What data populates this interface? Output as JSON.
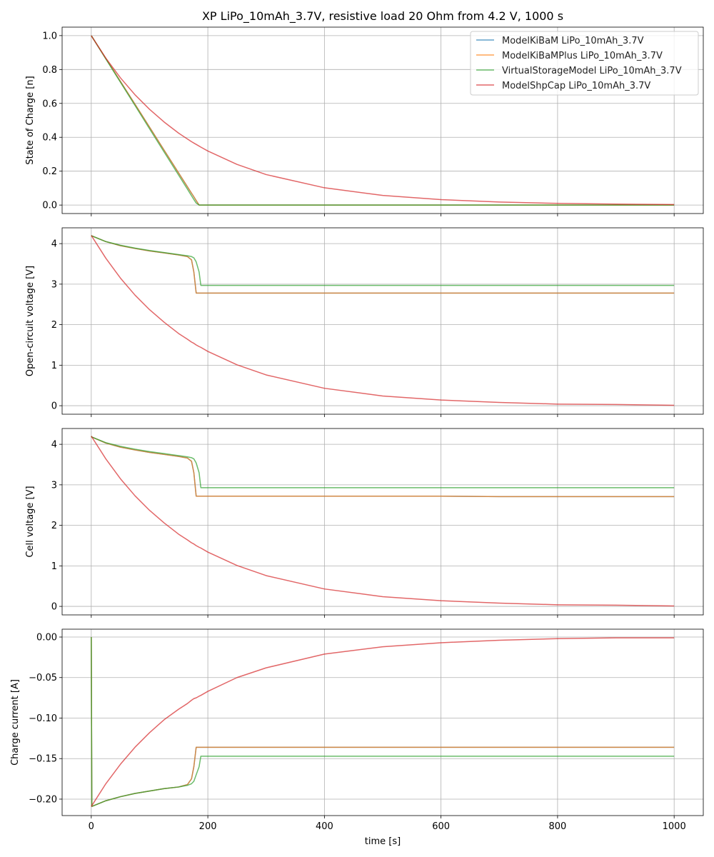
{
  "chart_data": {
    "type": "line",
    "title": "XP LiPo_10mAh_3.7V, resistive load 20 Ohm from 4.2 V, 1000 s",
    "xlabel": "time [s]",
    "xlim": [
      -50,
      1050
    ],
    "xticks": [
      0,
      200,
      400,
      600,
      800,
      1000
    ],
    "grid": true,
    "legend_placement": "top-right (first panel)",
    "x": [
      0,
      1,
      25,
      50,
      75,
      100,
      125,
      150,
      165,
      172,
      176,
      180,
      185,
      188,
      200,
      250,
      300,
      400,
      500,
      600,
      700,
      800,
      900,
      1000
    ],
    "series_meta": [
      {
        "name": "ModelKiBaM LiPo_10mAh_3.7V",
        "color": "#1f77b4"
      },
      {
        "name": "ModelKiBaMPlus LiPo_10mAh_3.7V",
        "color": "#ff7f0e"
      },
      {
        "name": "VirtualStorageModel LiPo_10mAh_3.7V",
        "color": "#2ca02c"
      },
      {
        "name": "ModelShpCap LiPo_10mAh_3.7V",
        "color": "#d62728"
      }
    ],
    "panels": [
      {
        "ylabel": "State of Charge [n]",
        "ylim": [
          -0.05,
          1.05
        ],
        "yticks": [
          0,
          0.2,
          0.4,
          0.6,
          0.8,
          1.0
        ],
        "ytick_labels": [
          "0.0",
          "0.2",
          "0.4",
          "0.6",
          "0.8",
          "1.0"
        ],
        "series": [
          [
            1,
            0.995,
            0.865,
            0.73,
            0.595,
            0.46,
            0.324,
            0.189,
            0.108,
            0.07,
            0.049,
            0.027,
            0,
            0,
            0,
            0,
            0,
            0,
            0,
            0,
            0,
            0,
            0,
            0
          ],
          [
            1,
            0.995,
            0.865,
            0.73,
            0.595,
            0.46,
            0.324,
            0.189,
            0.108,
            0.07,
            0.049,
            0.027,
            0,
            0,
            0,
            0,
            0,
            0,
            0,
            0,
            0,
            0,
            0,
            0
          ],
          [
            1,
            0.995,
            0.862,
            0.725,
            0.588,
            0.45,
            0.313,
            0.176,
            0.094,
            0.055,
            0.033,
            0.012,
            0,
            0,
            0,
            0,
            0,
            0,
            0,
            0,
            0,
            0,
            0,
            0
          ],
          [
            1,
            0.994,
            0.867,
            0.751,
            0.651,
            0.565,
            0.49,
            0.424,
            0.39,
            0.374,
            0.366,
            0.358,
            0.348,
            0.342,
            0.319,
            0.24,
            0.18,
            0.102,
            0.057,
            0.032,
            0.018,
            0.01,
            0.006,
            0.003
          ]
        ]
      },
      {
        "ylabel": "Open-circuit voltage [V]",
        "ylim": [
          -0.21,
          4.39
        ],
        "yticks": [
          0,
          1,
          2,
          3,
          4
        ],
        "ytick_labels": [
          "0",
          "1",
          "2",
          "3",
          "4"
        ],
        "series": [
          [
            4.2,
            4.19,
            4.05,
            3.95,
            3.88,
            3.82,
            3.77,
            3.72,
            3.68,
            3.6,
            3.3,
            2.78,
            2.78,
            2.78,
            2.78,
            2.78,
            2.78,
            2.78,
            2.78,
            2.78,
            2.78,
            2.78,
            2.78,
            2.78
          ],
          [
            4.2,
            4.19,
            4.05,
            3.95,
            3.88,
            3.82,
            3.77,
            3.72,
            3.68,
            3.6,
            3.3,
            2.78,
            2.78,
            2.78,
            2.78,
            2.78,
            2.78,
            2.78,
            2.78,
            2.78,
            2.78,
            2.78,
            2.78,
            2.78
          ],
          [
            4.2,
            4.19,
            4.05,
            3.96,
            3.89,
            3.83,
            3.78,
            3.73,
            3.7,
            3.68,
            3.65,
            3.55,
            3.3,
            2.97,
            2.97,
            2.97,
            2.97,
            2.97,
            2.97,
            2.97,
            2.97,
            2.97,
            2.97,
            2.97
          ],
          [
            4.2,
            4.18,
            3.64,
            3.15,
            2.73,
            2.37,
            2.06,
            1.78,
            1.64,
            1.57,
            1.54,
            1.5,
            1.46,
            1.44,
            1.34,
            1.01,
            0.76,
            0.43,
            0.24,
            0.14,
            0.08,
            0.04,
            0.03,
            0.01
          ]
        ]
      },
      {
        "ylabel": "Cell voltage [V]",
        "ylim": [
          -0.21,
          4.39
        ],
        "yticks": [
          0,
          1,
          2,
          3,
          4
        ],
        "ytick_labels": [
          "0",
          "1",
          "2",
          "3",
          "4"
        ],
        "series": [
          [
            4.2,
            4.18,
            4.03,
            3.93,
            3.86,
            3.8,
            3.75,
            3.7,
            3.66,
            3.58,
            3.3,
            2.72,
            2.72,
            2.72,
            2.72,
            2.72,
            2.72,
            2.72,
            2.72,
            2.72,
            2.71,
            2.71,
            2.71,
            2.71
          ],
          [
            4.2,
            4.18,
            4.03,
            3.93,
            3.86,
            3.8,
            3.75,
            3.7,
            3.66,
            3.58,
            3.3,
            2.72,
            2.72,
            2.72,
            2.72,
            2.72,
            2.72,
            2.72,
            2.72,
            2.72,
            2.71,
            2.71,
            2.71,
            2.71
          ],
          [
            4.2,
            4.18,
            4.04,
            3.95,
            3.88,
            3.82,
            3.77,
            3.72,
            3.69,
            3.67,
            3.64,
            3.54,
            3.3,
            2.93,
            2.93,
            2.93,
            2.93,
            2.93,
            2.93,
            2.93,
            2.93,
            2.93,
            2.93,
            2.93
          ],
          [
            4.2,
            4.18,
            3.64,
            3.15,
            2.73,
            2.37,
            2.06,
            1.78,
            1.64,
            1.57,
            1.54,
            1.5,
            1.46,
            1.44,
            1.34,
            1.01,
            0.76,
            0.43,
            0.24,
            0.14,
            0.08,
            0.04,
            0.03,
            0.01
          ]
        ]
      },
      {
        "ylabel": "Charge current [A]",
        "ylim": [
          -0.2203,
          0.0097
        ],
        "yticks": [
          0,
          -0.05,
          -0.1,
          -0.15,
          -0.2
        ],
        "ytick_labels": [
          "0.00",
          "−0.05",
          "−0.10",
          "−0.15",
          "−0.20"
        ],
        "series": [
          [
            0,
            -0.209,
            -0.202,
            -0.197,
            -0.193,
            -0.19,
            -0.187,
            -0.185,
            -0.182,
            -0.175,
            -0.16,
            -0.136,
            -0.136,
            -0.136,
            -0.136,
            -0.136,
            -0.136,
            -0.136,
            -0.136,
            -0.136,
            -0.136,
            -0.136,
            -0.136,
            -0.136
          ],
          [
            0,
            -0.209,
            -0.202,
            -0.197,
            -0.193,
            -0.19,
            -0.187,
            -0.185,
            -0.182,
            -0.175,
            -0.16,
            -0.136,
            -0.136,
            -0.136,
            -0.136,
            -0.136,
            -0.136,
            -0.136,
            -0.136,
            -0.136,
            -0.136,
            -0.136,
            -0.136,
            -0.136
          ],
          [
            0,
            -0.209,
            -0.202,
            -0.197,
            -0.193,
            -0.19,
            -0.187,
            -0.185,
            -0.183,
            -0.181,
            -0.178,
            -0.17,
            -0.16,
            -0.147,
            -0.147,
            -0.147,
            -0.147,
            -0.147,
            -0.147,
            -0.147,
            -0.147,
            -0.147,
            -0.147,
            -0.147
          ],
          [
            -0.209,
            -0.208,
            -0.181,
            -0.157,
            -0.136,
            -0.118,
            -0.102,
            -0.089,
            -0.082,
            -0.078,
            -0.076,
            -0.075,
            -0.073,
            -0.072,
            -0.067,
            -0.05,
            -0.038,
            -0.021,
            -0.012,
            -0.007,
            -0.004,
            -0.002,
            -0.001,
            -0.001
          ]
        ]
      }
    ]
  }
}
